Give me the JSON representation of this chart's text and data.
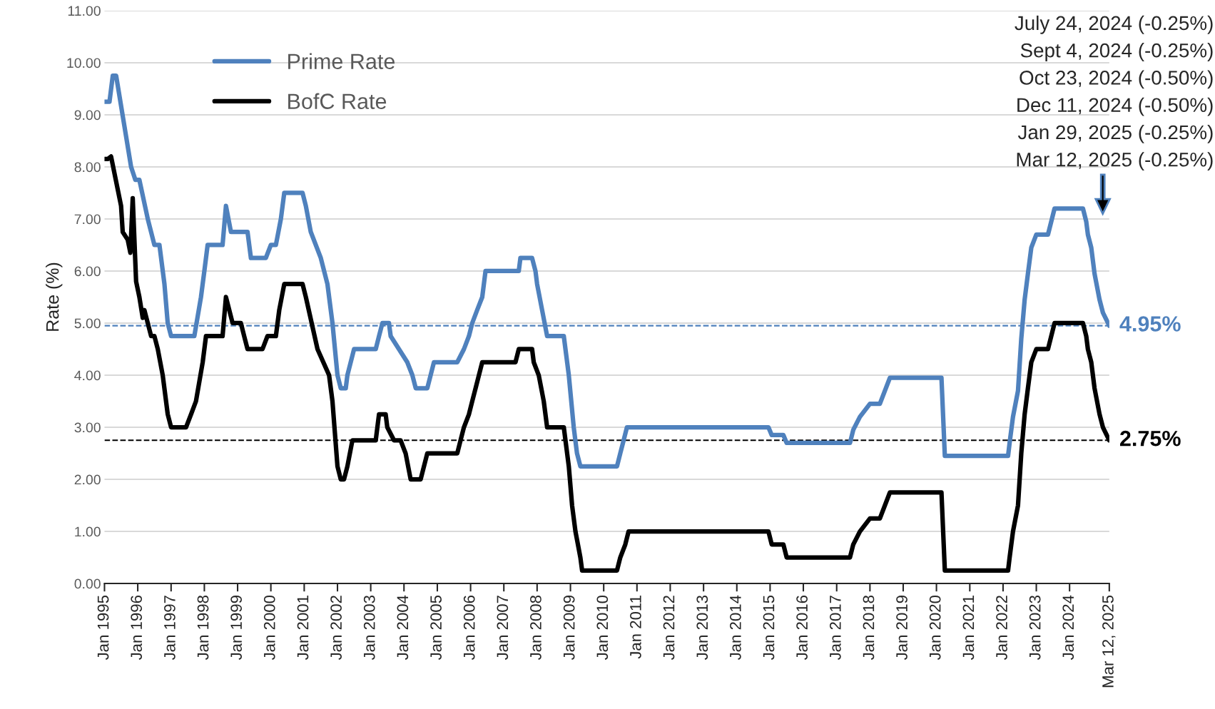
{
  "chart_data": {
    "type": "line",
    "ylabel": "Rate (%)",
    "annotations": [
      "July 24, 2024 (-0.25%)",
      "Sept 4, 2024 (-0.25%)",
      "Oct 23, 2024 (-0.50%)",
      "Dec 11, 2024 (-0.50%)",
      "Jan 29, 2025 (-0.25%)",
      "Mar 12, 2025 (-0.25%)"
    ],
    "xlim": [
      "1995-01-01",
      "2025-03-12"
    ],
    "xticks": [
      {
        "value": "1995-01-01",
        "label": "Jan 1995"
      },
      {
        "value": "1996-01-01",
        "label": "Jan 1996"
      },
      {
        "value": "1997-01-01",
        "label": "Jan 1997"
      },
      {
        "value": "1998-01-01",
        "label": "Jan 1998"
      },
      {
        "value": "1999-01-01",
        "label": "Jan 1999"
      },
      {
        "value": "2000-01-01",
        "label": "Jan 2000"
      },
      {
        "value": "2001-01-01",
        "label": "Jan 2001"
      },
      {
        "value": "2002-01-01",
        "label": "Jan 2002"
      },
      {
        "value": "2003-01-01",
        "label": "Jan 2003"
      },
      {
        "value": "2004-01-01",
        "label": "Jan 2004"
      },
      {
        "value": "2005-01-01",
        "label": "Jan 2005"
      },
      {
        "value": "2006-01-01",
        "label": "Jan 2006"
      },
      {
        "value": "2007-01-01",
        "label": "Jan 2007"
      },
      {
        "value": "2008-01-01",
        "label": "Jan 2008"
      },
      {
        "value": "2009-01-01",
        "label": "Jan 2009"
      },
      {
        "value": "2010-01-01",
        "label": "Jan 2010"
      },
      {
        "value": "2011-01-01",
        "label": "Jan 2011"
      },
      {
        "value": "2012-01-01",
        "label": "Jan 2012"
      },
      {
        "value": "2013-01-01",
        "label": "Jan 2013"
      },
      {
        "value": "2014-01-01",
        "label": "Jan 2014"
      },
      {
        "value": "2015-01-01",
        "label": "Jan 2015"
      },
      {
        "value": "2016-01-01",
        "label": "Jan 2016"
      },
      {
        "value": "2017-01-01",
        "label": "Jan 2017"
      },
      {
        "value": "2018-01-01",
        "label": "Jan 2018"
      },
      {
        "value": "2019-01-01",
        "label": "Jan 2019"
      },
      {
        "value": "2020-01-01",
        "label": "Jan 2020"
      },
      {
        "value": "2021-01-01",
        "label": "Jan 2021"
      },
      {
        "value": "2022-01-01",
        "label": "Jan 2022"
      },
      {
        "value": "2023-01-01",
        "label": "Jan 2023"
      },
      {
        "value": "2024-01-01",
        "label": "Jan 2024"
      },
      {
        "value": "2025-03-12",
        "label": "Mar 12, 2025"
      }
    ],
    "ylim": [
      0,
      11
    ],
    "yticks": [
      {
        "value": 0,
        "label": "0.00"
      },
      {
        "value": 1,
        "label": "1.00"
      },
      {
        "value": 2,
        "label": "2.00"
      },
      {
        "value": 3,
        "label": "3.00"
      },
      {
        "value": 4,
        "label": "4.00"
      },
      {
        "value": 5,
        "label": "5.00"
      },
      {
        "value": 6,
        "label": "6.00"
      },
      {
        "value": 7,
        "label": "7.00"
      },
      {
        "value": 8,
        "label": "8.00"
      },
      {
        "value": 9,
        "label": "9.00"
      },
      {
        "value": 10,
        "label": "10.00"
      },
      {
        "value": 11,
        "label": "11.00"
      }
    ],
    "grid": "y",
    "legend": "top left",
    "marker": "none",
    "line_style": "solid",
    "ref_lines": [
      {
        "axis": "y",
        "value": 4.95,
        "label": "4.95%",
        "color": "#4f81bd",
        "line_style": "dashed"
      },
      {
        "axis": "y",
        "value": 2.75,
        "label": "2.75%",
        "color": "#000000",
        "line_style": "dashed"
      }
    ],
    "series": [
      {
        "name": "Prime Rate",
        "color": "#4f81bd",
        "x": [
          "1995-01-01",
          "1995-02-25",
          "1995-04-02",
          "1995-05-09",
          "1995-10-20",
          "1995-12-06",
          "1996-01-19",
          "1996-04-20",
          "1996-07-02",
          "1996-08-26",
          "1996-10-20",
          "1996-11-25",
          "1997-01-01",
          "1997-09-13",
          "1997-11-25",
          "1998-01-01",
          "1998-02-06",
          "1998-07-20",
          "1998-08-26",
          "1998-10-20",
          "1999-04-20",
          "1999-05-27",
          "1999-11-07",
          "2000-01-01",
          "2000-02-25",
          "2000-04-20",
          "2000-05-27",
          "2000-12-14",
          "2001-01-19",
          "2001-03-14",
          "2001-07-02",
          "2001-09-13",
          "2001-11-07",
          "2002-01-01",
          "2002-02-06",
          "2002-04-02",
          "2002-04-20",
          "2002-07-02",
          "2003-02-25",
          "2003-04-02",
          "2003-05-09",
          "2003-07-20",
          "2003-08-08",
          "2003-11-07",
          "2004-02-06",
          "2004-04-02",
          "2004-05-09",
          "2004-09-13",
          "2004-11-25",
          "2005-08-08",
          "2005-10-20",
          "2005-12-14",
          "2006-01-19",
          "2006-03-14",
          "2006-05-09",
          "2006-06-14",
          "2007-06-14",
          "2007-07-02",
          "2007-11-07",
          "2007-12-14",
          "2008-01-01",
          "2008-02-25",
          "2008-04-20",
          "2008-10-20",
          "2008-12-14",
          "2009-02-06",
          "2009-03-14",
          "2009-04-20",
          "2010-05-27",
          "2010-07-02",
          "2010-08-08",
          "2010-09-13",
          "2014-12-14",
          "2015-01-19",
          "2015-05-27",
          "2015-07-02",
          "2017-05-27",
          "2017-07-02",
          "2017-09-13",
          "2018-01-01",
          "2018-04-20",
          "2018-06-14",
          "2018-08-08",
          "2020-02-25",
          "2020-04-02",
          "2022-02-25",
          "2022-03-14",
          "2022-04-20",
          "2022-06-14",
          "2022-07-20",
          "2022-08-26",
          "2022-10-01",
          "2022-11-07",
          "2023-01-01",
          "2023-05-09",
          "2023-07-20",
          "2024-05-27",
          "2024-07-02",
          "2024-07-20",
          "2024-08-26",
          "2024-10-01",
          "2024-11-25",
          "2025-01-01",
          "2025-03-12"
        ],
        "values": [
          9.25,
          9.25,
          9.75,
          9.75,
          8.0,
          7.75,
          7.75,
          7.0,
          6.5,
          6.5,
          5.75,
          5.0,
          4.75,
          4.75,
          5.5,
          6.0,
          6.5,
          6.5,
          7.25,
          6.75,
          6.75,
          6.25,
          6.25,
          6.5,
          6.5,
          7.0,
          7.5,
          7.5,
          7.25,
          6.75,
          6.25,
          5.75,
          5.0,
          4.0,
          3.75,
          3.75,
          4.0,
          4.5,
          4.5,
          4.75,
          5.0,
          5.0,
          4.75,
          4.5,
          4.25,
          4.0,
          3.75,
          3.75,
          4.25,
          4.25,
          4.5,
          4.75,
          5.0,
          5.25,
          5.5,
          6.0,
          6.0,
          6.25,
          6.25,
          6.0,
          5.75,
          5.25,
          4.75,
          4.75,
          4.0,
          3.0,
          2.5,
          2.25,
          2.25,
          2.5,
          2.75,
          3.0,
          3.0,
          2.85,
          2.85,
          2.7,
          2.7,
          2.95,
          3.2,
          3.45,
          3.45,
          3.7,
          3.95,
          3.95,
          2.45,
          2.45,
          2.7,
          3.2,
          3.7,
          4.7,
          5.45,
          5.95,
          6.45,
          6.7,
          6.7,
          7.2,
          7.2,
          6.95,
          6.7,
          6.45,
          5.95,
          5.45,
          5.2,
          4.95
        ]
      },
      {
        "name": "BofC Rate",
        "color": "#000000",
        "x": [
          "1995-01-01",
          "1995-02-06",
          "1995-03-14",
          "1995-07-02",
          "1995-07-20",
          "1995-09-13",
          "1995-10-12",
          "1995-11-07",
          "1995-12-14",
          "1996-01-19",
          "1996-02-25",
          "1996-03-14",
          "1996-05-27",
          "1996-07-02",
          "1996-08-08",
          "1996-10-01",
          "1996-11-25",
          "1997-01-01",
          "1997-06-14",
          "1997-08-08",
          "1997-10-01",
          "1997-12-14",
          "1998-01-19",
          "1998-07-20",
          "1998-08-26",
          "1998-11-07",
          "1999-02-06",
          "1999-03-14",
          "1999-04-20",
          "1999-10-01",
          "1999-11-25",
          "2000-02-25",
          "2000-04-02",
          "2000-05-27",
          "2000-12-14",
          "2001-01-19",
          "2001-05-27",
          "2001-10-01",
          "2001-11-07",
          "2002-01-01",
          "2002-02-06",
          "2002-03-14",
          "2002-04-20",
          "2002-06-14",
          "2003-02-25",
          "2003-04-02",
          "2003-06-14",
          "2003-07-02",
          "2003-09-13",
          "2003-11-25",
          "2004-01-19",
          "2004-03-14",
          "2004-07-02",
          "2004-09-13",
          "2005-08-08",
          "2005-09-13",
          "2005-10-20",
          "2005-12-14",
          "2006-01-19",
          "2006-02-25",
          "2006-05-09",
          "2007-05-09",
          "2007-06-14",
          "2007-11-07",
          "2007-11-25",
          "2008-01-19",
          "2008-03-14",
          "2008-04-20",
          "2008-10-20",
          "2008-12-14",
          "2009-01-19",
          "2009-02-25",
          "2009-04-20",
          "2009-05-09",
          "2010-05-27",
          "2010-07-02",
          "2010-08-26",
          "2010-10-01",
          "2014-12-14",
          "2015-01-19",
          "2015-05-27",
          "2015-07-02",
          "2017-05-27",
          "2017-07-02",
          "2017-09-13",
          "2018-01-01",
          "2018-04-20",
          "2018-06-14",
          "2018-08-08",
          "2020-02-25",
          "2020-04-02",
          "2022-02-25",
          "2022-03-14",
          "2022-04-20",
          "2022-06-14",
          "2022-07-20",
          "2022-08-26",
          "2022-10-01",
          "2022-11-07",
          "2023-01-01",
          "2023-05-09",
          "2023-07-20",
          "2024-05-27",
          "2024-07-02",
          "2024-07-20",
          "2024-08-26",
          "2024-10-01",
          "2024-11-25",
          "2025-01-01",
          "2025-03-12"
        ],
        "values": [
          8.15,
          8.15,
          8.2,
          7.25,
          6.75,
          6.6,
          6.35,
          7.4,
          5.8,
          5.5,
          5.1,
          5.25,
          4.75,
          4.75,
          4.5,
          4.0,
          3.25,
          3.0,
          3.0,
          3.25,
          3.5,
          4.25,
          4.75,
          4.75,
          5.5,
          5.0,
          5.0,
          4.75,
          4.5,
          4.5,
          4.75,
          4.75,
          5.25,
          5.75,
          5.75,
          5.5,
          4.5,
          4.0,
          3.5,
          2.25,
          2.0,
          2.0,
          2.25,
          2.75,
          2.75,
          3.25,
          3.25,
          3.0,
          2.75,
          2.75,
          2.5,
          2.0,
          2.0,
          2.5,
          2.5,
          2.75,
          3.0,
          3.25,
          3.5,
          3.75,
          4.25,
          4.25,
          4.5,
          4.5,
          4.25,
          4.0,
          3.5,
          3.0,
          3.0,
          2.25,
          1.5,
          1.0,
          0.5,
          0.25,
          0.25,
          0.5,
          0.75,
          1.0,
          1.0,
          0.75,
          0.75,
          0.5,
          0.5,
          0.75,
          1.0,
          1.25,
          1.25,
          1.5,
          1.75,
          1.75,
          0.25,
          0.25,
          0.5,
          1.0,
          1.5,
          2.5,
          3.25,
          3.75,
          4.25,
          4.5,
          4.5,
          5.0,
          5.0,
          4.75,
          4.5,
          4.25,
          3.75,
          3.25,
          3.0,
          2.75
        ]
      }
    ]
  }
}
